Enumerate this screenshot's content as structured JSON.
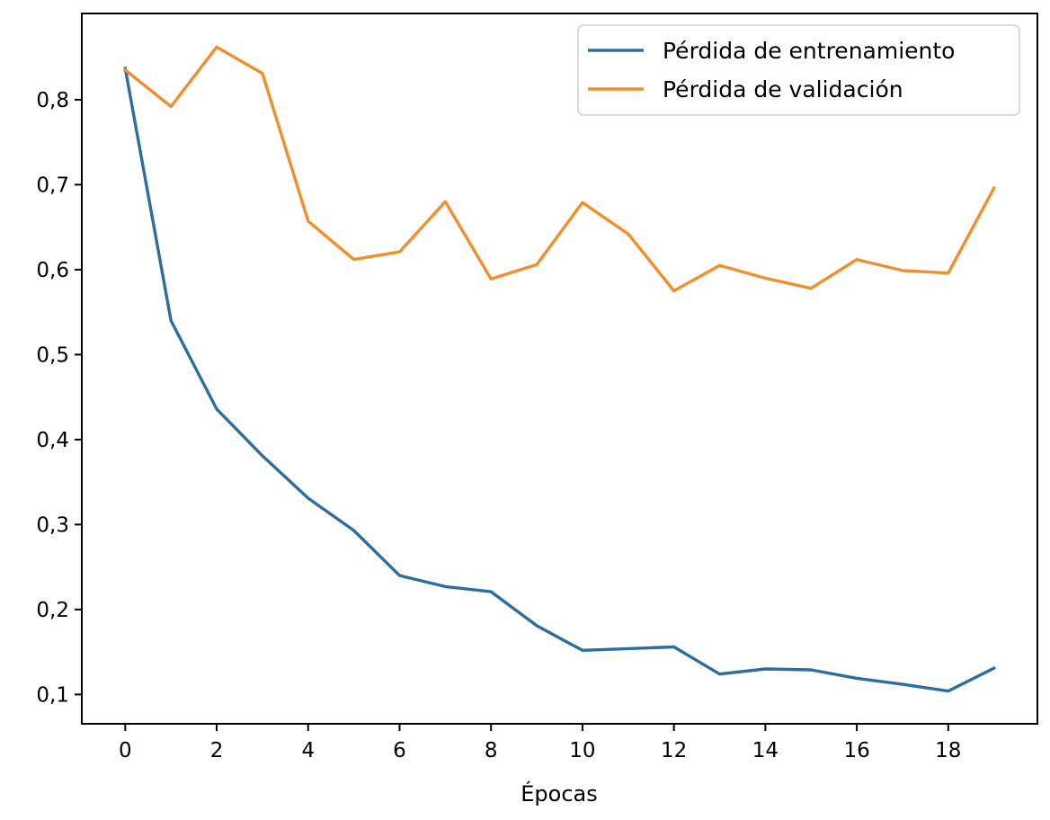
{
  "chart_data": {
    "type": "line",
    "title": "",
    "xlabel": "Épocas",
    "ylabel": "",
    "x": [
      0,
      1,
      2,
      3,
      4,
      5,
      6,
      7,
      8,
      9,
      10,
      11,
      12,
      13,
      14,
      15,
      16,
      17,
      18,
      19
    ],
    "xlim": [
      -0.95,
      19.95
    ],
    "ylim": [
      0.0655,
      0.9015
    ],
    "x_ticks": [
      0,
      2,
      4,
      6,
      8,
      10,
      12,
      14,
      16,
      18
    ],
    "x_tick_labels": [
      "0",
      "2",
      "4",
      "6",
      "8",
      "10",
      "12",
      "14",
      "16",
      "18"
    ],
    "y_ticks": [
      0.1,
      0.2,
      0.3,
      0.4,
      0.5,
      0.6,
      0.7,
      0.8
    ],
    "y_tick_labels": [
      "0,1",
      "0,2",
      "0,3",
      "0,4",
      "0,5",
      "0,6",
      "0,7",
      "0,8"
    ],
    "grid": false,
    "legend_position": "top-right",
    "series": [
      {
        "name": "Pérdida de entrenamiento",
        "color": "#2e6e9e",
        "values": [
          0.837,
          0.54,
          0.436,
          0.381,
          0.331,
          0.293,
          0.24,
          0.227,
          0.221,
          0.181,
          0.152,
          0.154,
          0.156,
          0.124,
          0.13,
          0.129,
          0.119,
          0.112,
          0.104,
          0.131
        ]
      },
      {
        "name": "Pérdida de validación",
        "color": "#f28e2b",
        "values": [
          0.835,
          0.792,
          0.862,
          0.831,
          0.657,
          0.612,
          0.621,
          0.68,
          0.589,
          0.606,
          0.679,
          0.642,
          0.575,
          0.605,
          0.59,
          0.578,
          0.612,
          0.599,
          0.596,
          0.696
        ]
      }
    ]
  }
}
